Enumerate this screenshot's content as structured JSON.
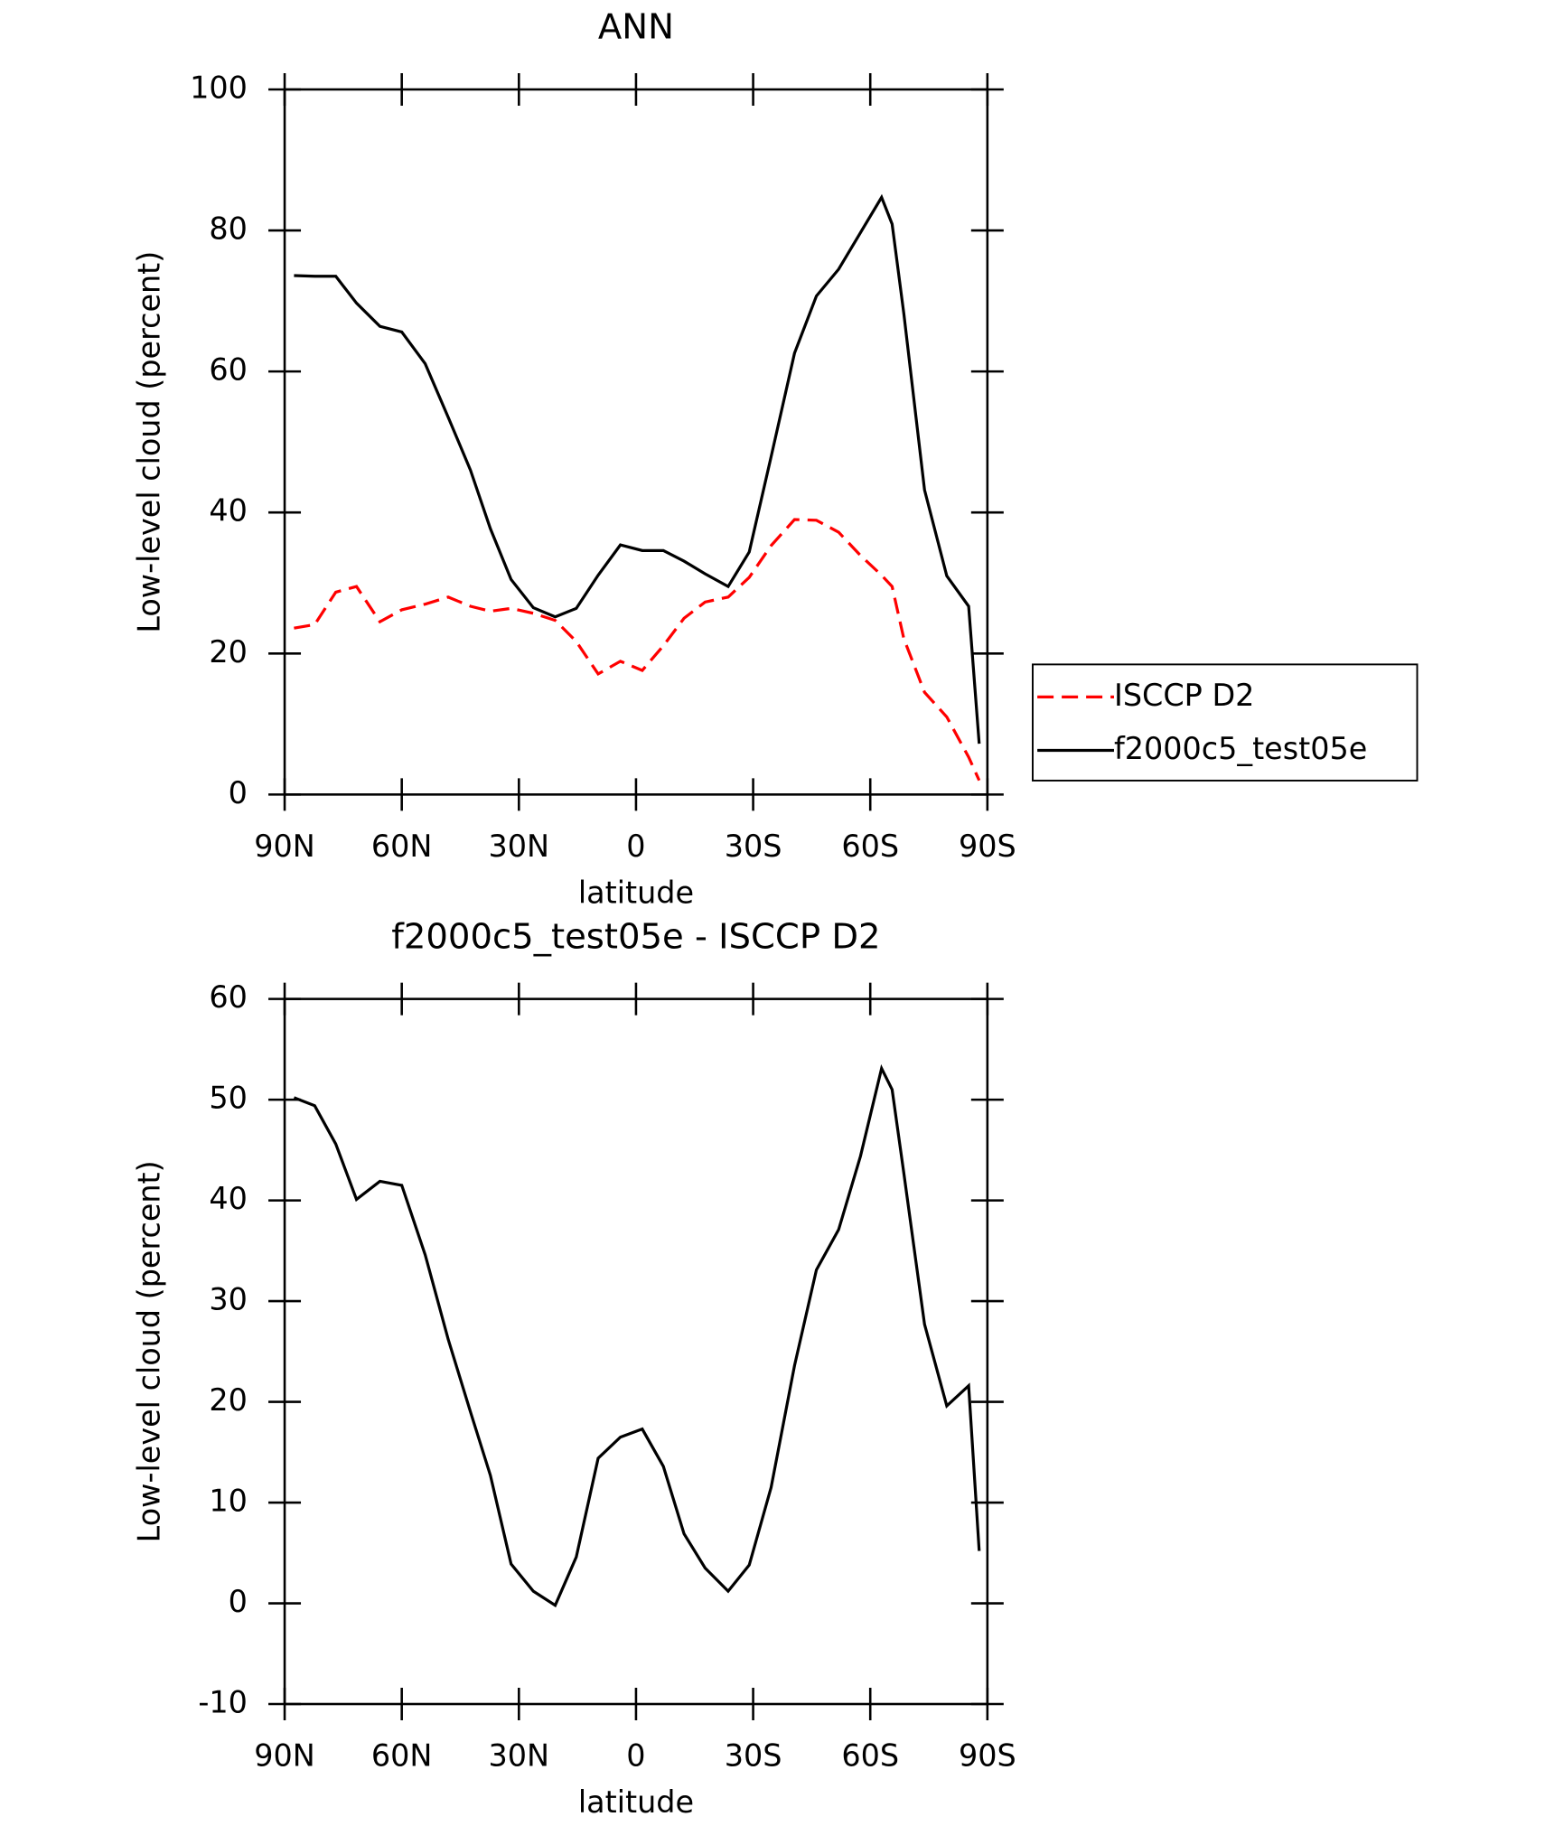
{
  "chart_data": [
    {
      "type": "line",
      "title": "ANN",
      "x_label": "latitude",
      "y_label": "Low-level cloud (percent)",
      "x": [
        87.6,
        82.3,
        76.9,
        71.6,
        65.6,
        60.0,
        54.0,
        48.1,
        42.4,
        37.3,
        32.0,
        26.3,
        20.7,
        15.3,
        9.7,
        4.0,
        -1.6,
        -7.0,
        -12.3,
        -17.7,
        -23.6,
        -29.0,
        -34.6,
        -40.6,
        -46.2,
        -51.9,
        -57.5,
        -62.9,
        -65.6,
        -68.6,
        -73.9,
        -79.6,
        -85.2,
        -87.9
      ],
      "series": [
        {
          "name": "ISCCP D2",
          "color": "#ff0000",
          "dash": true,
          "values": [
            23.6,
            24.1,
            28.7,
            29.5,
            24.5,
            26.2,
            27.0,
            28.0,
            26.7,
            26.0,
            26.4,
            25.7,
            24.7,
            21.7,
            17.1,
            18.9,
            17.6,
            21.1,
            25.0,
            27.3,
            28.0,
            30.8,
            35.3,
            39.0,
            38.9,
            37.2,
            33.9,
            31.1,
            29.5,
            22.1,
            14.5,
            11.0,
            5.3,
            2.0
          ]
        },
        {
          "name": "f2000c5_test05e",
          "color": "#000000",
          "dash": false,
          "values": [
            73.6,
            73.5,
            73.5,
            69.7,
            66.4,
            65.6,
            61.1,
            53.5,
            46.0,
            37.7,
            30.5,
            26.5,
            25.2,
            26.4,
            31.1,
            35.4,
            34.6,
            34.6,
            33.1,
            31.3,
            29.5,
            34.4,
            47.9,
            62.6,
            70.7,
            74.5,
            79.7,
            84.7,
            80.9,
            68.2,
            43.2,
            31.0,
            26.7,
            7.2
          ]
        }
      ],
      "xlim": [
        90,
        -90
      ],
      "xticks": [
        {
          "value": 90,
          "label": "90N"
        },
        {
          "value": 60,
          "label": "60N"
        },
        {
          "value": 30,
          "label": "30N"
        },
        0,
        {
          "value": -30,
          "label": "30S"
        },
        {
          "value": -60,
          "label": "60S"
        },
        {
          "value": -90,
          "label": "90S"
        }
      ],
      "ylim": [
        0,
        100
      ],
      "yticks": [
        0,
        20,
        40,
        60,
        80,
        100
      ],
      "legend": "right"
    },
    {
      "type": "line",
      "title": "f2000c5_test05e - ISCCP D2",
      "x_label": "latitude",
      "y_label": "Low-level cloud (percent)",
      "x": [
        87.6,
        82.3,
        76.9,
        71.6,
        65.6,
        60.0,
        54.0,
        48.1,
        42.4,
        37.3,
        32.0,
        26.3,
        20.7,
        15.3,
        9.7,
        4.0,
        -1.6,
        -7.0,
        -12.3,
        -17.7,
        -23.6,
        -29.0,
        -34.6,
        -40.6,
        -46.2,
        -51.9,
        -57.5,
        -62.9,
        -65.6,
        -68.6,
        -73.9,
        -79.6,
        -85.2,
        -87.9
      ],
      "series": [
        {
          "color": "#000000",
          "dash": false,
          "values": [
            50.2,
            49.4,
            45.6,
            40.1,
            41.9,
            41.5,
            34.6,
            26.2,
            19.0,
            12.7,
            3.9,
            1.2,
            -0.2,
            4.6,
            14.4,
            16.5,
            17.3,
            13.6,
            6.9,
            3.5,
            1.2,
            3.8,
            11.5,
            23.6,
            33.1,
            37.1,
            44.4,
            53.1,
            51.0,
            42.7,
            27.7,
            19.6,
            21.6,
            5.2
          ]
        }
      ],
      "xlim": [
        90,
        -90
      ],
      "xticks": [
        {
          "value": 90,
          "label": "90N"
        },
        {
          "value": 60,
          "label": "60N"
        },
        {
          "value": 30,
          "label": "30N"
        },
        0,
        {
          "value": -30,
          "label": "30S"
        },
        {
          "value": -60,
          "label": "60S"
        },
        {
          "value": -90,
          "label": "90S"
        }
      ],
      "ylim": [
        -10,
        60
      ],
      "yticks": [
        -10,
        0,
        10,
        20,
        30,
        40,
        50,
        60
      ]
    }
  ]
}
